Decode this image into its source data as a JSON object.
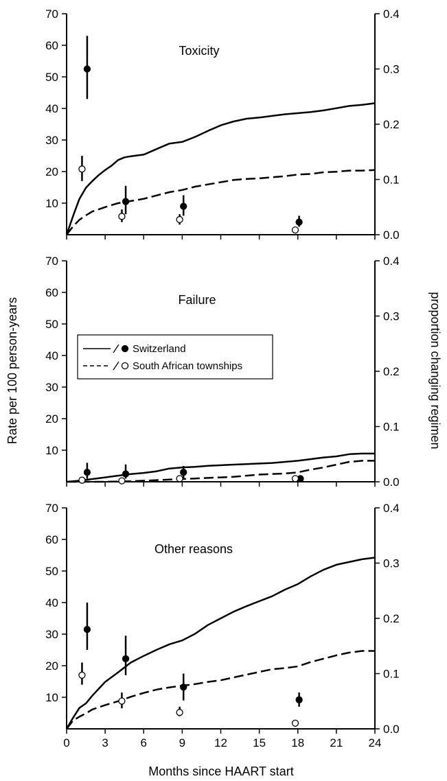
{
  "chart_data": [
    {
      "type": "line",
      "title": "Toxicity",
      "xlabel": "Months since HAART start",
      "ylabel_left": "Rate per 100 person-years",
      "ylabel_right": "proportion changing regimen",
      "xlim": [
        0,
        24
      ],
      "ylim_left": [
        0,
        70
      ],
      "ylim_right": [
        0,
        0.4
      ],
      "x_ticks": [
        "0",
        "3",
        "6",
        "9",
        "12",
        "15",
        "18",
        "21",
        "24"
      ],
      "y_left_ticks": [
        "10",
        "20",
        "30",
        "40",
        "50",
        "60",
        "70"
      ],
      "y_right_ticks": [
        "0.0",
        "0.1",
        "0.2",
        "0.3",
        "0.4"
      ],
      "grid": false,
      "series": [
        {
          "name": "Switzerland",
          "kind": "cumulative-proportion",
          "color": "#000000",
          "dash": "solid",
          "x": [
            0,
            0.3,
            0.6,
            1.0,
            1.5,
            2.0,
            2.5,
            3.0,
            3.5,
            4.0,
            4.5,
            5.0,
            6.0,
            7.0,
            8.0,
            9.0,
            10.0,
            11.0,
            12.0,
            13.0,
            14.0,
            15.0,
            16.0,
            17.0,
            18.0,
            19.0,
            20.0,
            21.0,
            22.0,
            23.0,
            24.0
          ],
          "y": [
            0.0,
            0.02,
            0.04,
            0.065,
            0.085,
            0.097,
            0.108,
            0.117,
            0.125,
            0.135,
            0.14,
            0.142,
            0.145,
            0.155,
            0.165,
            0.168,
            0.177,
            0.188,
            0.198,
            0.205,
            0.21,
            0.212,
            0.215,
            0.218,
            0.22,
            0.222,
            0.225,
            0.229,
            0.233,
            0.235,
            0.238
          ]
        },
        {
          "name": "South African townships",
          "kind": "cumulative-proportion",
          "color": "#000000",
          "dash": "dashed",
          "x": [
            0,
            0.5,
            1.0,
            1.5,
            2.0,
            3.0,
            4.0,
            5.0,
            6.0,
            7.0,
            8.0,
            9.0,
            10.0,
            11.0,
            12.0,
            13.0,
            14.0,
            15.0,
            16.0,
            17.0,
            18.0,
            19.0,
            20.0,
            21.0,
            22.0,
            23.0,
            24.0
          ],
          "y": [
            0.0,
            0.015,
            0.027,
            0.035,
            0.042,
            0.05,
            0.057,
            0.061,
            0.065,
            0.071,
            0.077,
            0.081,
            0.087,
            0.091,
            0.095,
            0.099,
            0.101,
            0.102,
            0.104,
            0.106,
            0.109,
            0.11,
            0.113,
            0.114,
            0.116,
            0.116,
            0.117
          ]
        },
        {
          "name": "Switzerland",
          "kind": "rate",
          "marker": "filled-circle",
          "x": [
            1.6,
            4.6,
            9.1,
            18.1
          ],
          "y": [
            52.5,
            10.5,
            9.0,
            4.0
          ],
          "err_low": [
            43.0,
            6.5,
            6.0,
            2.5
          ],
          "err_high": [
            63.0,
            15.5,
            12.5,
            6.0
          ]
        },
        {
          "name": "South African townships",
          "kind": "rate",
          "marker": "open-circle",
          "x": [
            1.2,
            4.3,
            8.8,
            17.8
          ],
          "y": [
            20.8,
            5.8,
            4.8,
            1.5
          ],
          "err_low": [
            17.0,
            4.0,
            3.2,
            1.0
          ],
          "err_high": [
            25.0,
            8.0,
            6.5,
            2.2
          ]
        }
      ]
    },
    {
      "type": "line",
      "title": "Failure",
      "xlim": [
        0,
        24
      ],
      "ylim_left": [
        0,
        70
      ],
      "ylim_right": [
        0,
        0.4
      ],
      "y_left_ticks": [
        "10",
        "20",
        "30",
        "40",
        "50",
        "60",
        "70"
      ],
      "y_right_ticks": [
        "0.0",
        "0.1",
        "0.2",
        "0.3",
        "0.4"
      ],
      "grid": false,
      "legend": {
        "placement": "middle-left",
        "entries": [
          {
            "label": "Switzerland",
            "line": "solid",
            "marker": "filled-circle"
          },
          {
            "label": "South African townships",
            "line": "dashed",
            "marker": "open-circle"
          }
        ]
      },
      "series": [
        {
          "name": "Switzerland",
          "kind": "cumulative-proportion",
          "color": "#000000",
          "dash": "solid",
          "x": [
            0,
            1.0,
            2.0,
            3.0,
            4.0,
            5.0,
            6.0,
            7.0,
            8.0,
            9.0,
            10.0,
            11.0,
            12.0,
            13.0,
            14.0,
            15.0,
            16.0,
            17.0,
            18.0,
            19.0,
            20.0,
            21.0,
            22.0,
            23.0,
            24.0
          ],
          "y": [
            0.0,
            0.002,
            0.005,
            0.008,
            0.011,
            0.014,
            0.016,
            0.019,
            0.024,
            0.026,
            0.027,
            0.029,
            0.03,
            0.031,
            0.032,
            0.033,
            0.034,
            0.036,
            0.038,
            0.041,
            0.044,
            0.046,
            0.05,
            0.051,
            0.051
          ]
        },
        {
          "name": "South African townships",
          "kind": "cumulative-proportion",
          "color": "#000000",
          "dash": "dashed",
          "x": [
            0,
            3.0,
            5.0,
            6.0,
            7.0,
            8.0,
            9.0,
            10.0,
            11.0,
            12.0,
            13.0,
            14.0,
            15.0,
            16.0,
            17.0,
            18.0,
            19.0,
            20.0,
            21.0,
            22.0,
            23.0,
            24.0
          ],
          "y": [
            0.0,
            0.0,
            0.001,
            0.002,
            0.003,
            0.004,
            0.005,
            0.006,
            0.007,
            0.008,
            0.009,
            0.011,
            0.013,
            0.014,
            0.015,
            0.017,
            0.022,
            0.026,
            0.031,
            0.036,
            0.038,
            0.038
          ]
        },
        {
          "name": "Switzerland",
          "kind": "rate",
          "marker": "filled-circle",
          "x": [
            1.6,
            4.6,
            9.1,
            18.2
          ],
          "y": [
            3.0,
            2.5,
            3.0,
            1.0
          ],
          "err_low": [
            1.0,
            1.0,
            1.2,
            0.4
          ],
          "err_high": [
            6.0,
            5.5,
            5.0,
            1.6
          ]
        },
        {
          "name": "South African townships",
          "kind": "rate",
          "marker": "open-circle",
          "x": [
            1.2,
            4.3,
            8.8,
            17.8
          ],
          "y": [
            0.5,
            0.3,
            1.0,
            1.0
          ],
          "err_low": [
            0.2,
            0.1,
            0.5,
            0.5
          ],
          "err_high": [
            0.8,
            0.5,
            1.6,
            1.5
          ]
        }
      ]
    },
    {
      "type": "line",
      "title": "Other reasons",
      "xlim": [
        0,
        24
      ],
      "ylim_left": [
        0,
        70
      ],
      "ylim_right": [
        0,
        0.4
      ],
      "x_ticks": [
        "0",
        "3",
        "6",
        "9",
        "12",
        "15",
        "18",
        "21",
        "24"
      ],
      "y_left_ticks": [
        "10",
        "20",
        "30",
        "40",
        "50",
        "60",
        "70"
      ],
      "y_right_ticks": [
        "0.0",
        "0.1",
        "0.2",
        "0.3",
        "0.4"
      ],
      "grid": false,
      "series": [
        {
          "name": "Switzerland",
          "kind": "cumulative-proportion",
          "color": "#000000",
          "dash": "solid",
          "x": [
            0,
            0.5,
            1.0,
            1.5,
            2.0,
            3.0,
            4.0,
            5.0,
            6.0,
            7.0,
            8.0,
            9.0,
            10.0,
            11.0,
            12.0,
            13.0,
            14.0,
            15.0,
            16.0,
            17.0,
            18.0,
            19.0,
            20.0,
            21.0,
            22.0,
            23.0,
            24.0
          ],
          "y": [
            0.0,
            0.02,
            0.038,
            0.046,
            0.06,
            0.085,
            0.102,
            0.12,
            0.132,
            0.143,
            0.153,
            0.16,
            0.172,
            0.188,
            0.2,
            0.212,
            0.222,
            0.231,
            0.24,
            0.252,
            0.262,
            0.276,
            0.288,
            0.297,
            0.302,
            0.307,
            0.31
          ]
        },
        {
          "name": "South African townships",
          "kind": "cumulative-proportion",
          "color": "#000000",
          "dash": "dashed",
          "x": [
            0,
            0.5,
            1.0,
            1.5,
            2.0,
            3.0,
            4.0,
            5.0,
            6.0,
            7.0,
            8.0,
            9.0,
            10.0,
            11.0,
            12.0,
            13.0,
            14.0,
            15.0,
            16.0,
            17.0,
            18.0,
            19.0,
            20.0,
            21.0,
            22.0,
            23.0,
            24.0
          ],
          "y": [
            0.0,
            0.015,
            0.022,
            0.028,
            0.035,
            0.043,
            0.05,
            0.058,
            0.065,
            0.071,
            0.075,
            0.078,
            0.081,
            0.085,
            0.088,
            0.093,
            0.098,
            0.103,
            0.108,
            0.11,
            0.113,
            0.121,
            0.127,
            0.133,
            0.138,
            0.141,
            0.141
          ]
        },
        {
          "name": "Switzerland",
          "kind": "rate",
          "marker": "filled-circle",
          "x": [
            1.6,
            4.6,
            9.1,
            18.1
          ],
          "y": [
            31.5,
            22.2,
            13.2,
            9.2
          ],
          "err_low": [
            25.0,
            17.0,
            9.0,
            7.0
          ],
          "err_high": [
            40.0,
            29.5,
            17.5,
            11.5
          ]
        },
        {
          "name": "South African townships",
          "kind": "rate",
          "marker": "open-circle",
          "x": [
            1.2,
            4.3,
            8.8,
            17.8
          ],
          "y": [
            17.0,
            8.8,
            5.2,
            1.8
          ],
          "err_low": [
            14.0,
            6.5,
            4.0,
            1.2
          ],
          "err_high": [
            21.0,
            11.5,
            7.0,
            2.5
          ]
        }
      ]
    }
  ]
}
